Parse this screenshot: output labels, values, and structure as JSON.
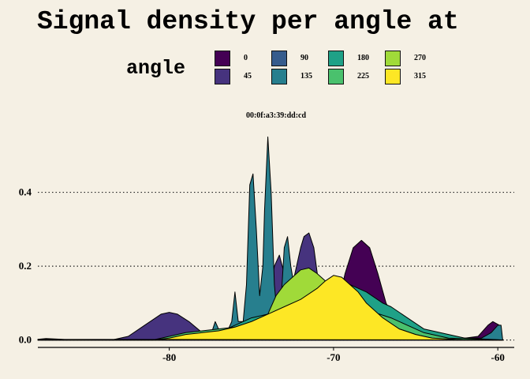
{
  "chart_data": {
    "type": "area",
    "title": "Signal density per angle at",
    "facet_label": "00:0f:a3:39:dd:cd",
    "legend_title": "angle",
    "legend_position": "top",
    "xlim": [
      -88,
      -59
    ],
    "ylim": [
      -0.02,
      0.6
    ],
    "x_ticks": [
      -80,
      -70,
      -60
    ],
    "y_ticks": [
      0.0,
      0.2,
      0.4
    ],
    "x_tick_labels": [
      "-80",
      "-70",
      "-60"
    ],
    "y_tick_labels": [
      "0.0",
      "0.2",
      "0.4"
    ],
    "grid": "horizontal-dotted",
    "series": [
      {
        "name": "0",
        "color": "#440154",
        "points": [
          [
            -88,
            0
          ],
          [
            -71.5,
            0
          ],
          [
            -70.5,
            0.01
          ],
          [
            -69.8,
            0.08
          ],
          [
            -69.3,
            0.18
          ],
          [
            -68.8,
            0.25
          ],
          [
            -68.3,
            0.27
          ],
          [
            -67.8,
            0.25
          ],
          [
            -67.3,
            0.18
          ],
          [
            -66.8,
            0.1
          ],
          [
            -66.2,
            0.05
          ],
          [
            -65.5,
            0.03
          ],
          [
            -64.5,
            0.02
          ],
          [
            -63.5,
            0.01
          ],
          [
            -62,
            0.005
          ],
          [
            -61.2,
            0.01
          ],
          [
            -60.6,
            0.04
          ],
          [
            -60.3,
            0.05
          ],
          [
            -59.9,
            0.04
          ],
          [
            -59.7,
            0
          ]
        ]
      },
      {
        "name": "45",
        "color": "#46337e",
        "points": [
          [
            -88,
            0
          ],
          [
            -83.5,
            0
          ],
          [
            -82.5,
            0.01
          ],
          [
            -81.5,
            0.04
          ],
          [
            -80.5,
            0.07
          ],
          [
            -80,
            0.075
          ],
          [
            -79.5,
            0.07
          ],
          [
            -78.8,
            0.05
          ],
          [
            -78,
            0.02
          ],
          [
            -77,
            0.01
          ],
          [
            -75,
            0.05
          ],
          [
            -74,
            0.1
          ],
          [
            -73.6,
            0.2
          ],
          [
            -73.3,
            0.23
          ],
          [
            -73,
            0.18
          ],
          [
            -72.5,
            0.15
          ],
          [
            -72,
            0.25
          ],
          [
            -71.8,
            0.28
          ],
          [
            -71.5,
            0.29
          ],
          [
            -71.2,
            0.25
          ],
          [
            -70.9,
            0.15
          ],
          [
            -70.5,
            0.06
          ],
          [
            -69,
            0.02
          ],
          [
            -67,
            0.01
          ],
          [
            -65,
            0
          ],
          [
            -59.7,
            0
          ]
        ]
      },
      {
        "name": "90",
        "color": "#365c8d",
        "points": [
          [
            -88,
            0
          ],
          [
            -79,
            0
          ],
          [
            -77.8,
            0.01
          ],
          [
            -77.2,
            0.03
          ],
          [
            -76.8,
            0.02
          ],
          [
            -76,
            0.03
          ],
          [
            -75,
            0.04
          ],
          [
            -74,
            0.03
          ],
          [
            -73,
            0.02
          ],
          [
            -72,
            0.01
          ],
          [
            -70,
            0
          ],
          [
            -59.7,
            0
          ]
        ]
      },
      {
        "name": "135",
        "color": "#277f8e",
        "points": [
          [
            -88,
            0
          ],
          [
            -78,
            0
          ],
          [
            -77.5,
            0.01
          ],
          [
            -77.2,
            0.05
          ],
          [
            -76.9,
            0.02
          ],
          [
            -76.5,
            0.02
          ],
          [
            -76.2,
            0.05
          ],
          [
            -76,
            0.13
          ],
          [
            -75.8,
            0.05
          ],
          [
            -75.5,
            0.05
          ],
          [
            -75.3,
            0.15
          ],
          [
            -75.1,
            0.42
          ],
          [
            -74.9,
            0.45
          ],
          [
            -74.7,
            0.3
          ],
          [
            -74.5,
            0.12
          ],
          [
            -74.3,
            0.2
          ],
          [
            -74.2,
            0.35
          ],
          [
            -74,
            0.55
          ],
          [
            -73.8,
            0.4
          ],
          [
            -73.6,
            0.15
          ],
          [
            -73.4,
            0.05
          ],
          [
            -73.2,
            0.1
          ],
          [
            -73,
            0.25
          ],
          [
            -72.8,
            0.28
          ],
          [
            -72.6,
            0.2
          ],
          [
            -72.3,
            0.12
          ],
          [
            -72,
            0.08
          ],
          [
            -71,
            0.05
          ],
          [
            -69,
            0.03
          ],
          [
            -67,
            0.015
          ],
          [
            -65,
            0.01
          ],
          [
            -62,
            0.005
          ],
          [
            -61,
            0.005
          ],
          [
            -60.4,
            0.02
          ],
          [
            -60,
            0.04
          ],
          [
            -59.8,
            0.04
          ],
          [
            -59.7,
            0
          ]
        ]
      },
      {
        "name": "180",
        "color": "#1fa187",
        "points": [
          [
            -88,
            0
          ],
          [
            -78.5,
            0
          ],
          [
            -77,
            0.02
          ],
          [
            -76,
            0.04
          ],
          [
            -75,
            0.06
          ],
          [
            -74,
            0.07
          ],
          [
            -73,
            0.08
          ],
          [
            -72,
            0.1
          ],
          [
            -71,
            0.13
          ],
          [
            -70,
            0.15
          ],
          [
            -69,
            0.15
          ],
          [
            -68,
            0.13
          ],
          [
            -67,
            0.1
          ],
          [
            -66.5,
            0.09
          ],
          [
            -65.5,
            0.06
          ],
          [
            -64.5,
            0.03
          ],
          [
            -63,
            0.015
          ],
          [
            -62,
            0.005
          ],
          [
            -59.7,
            0
          ]
        ]
      },
      {
        "name": "225",
        "color": "#4ac16d",
        "points": [
          [
            -88,
            0
          ],
          [
            -81,
            0
          ],
          [
            -80,
            0.01
          ],
          [
            -79,
            0.02
          ],
          [
            -78,
            0.025
          ],
          [
            -77,
            0.03
          ],
          [
            -76,
            0.035
          ],
          [
            -75,
            0.05
          ],
          [
            -74,
            0.07
          ],
          [
            -73,
            0.1
          ],
          [
            -72,
            0.12
          ],
          [
            -71,
            0.14
          ],
          [
            -70,
            0.14
          ],
          [
            -69,
            0.12
          ],
          [
            -68,
            0.08
          ],
          [
            -67.2,
            0.07
          ],
          [
            -66.5,
            0.06
          ],
          [
            -65.5,
            0.04
          ],
          [
            -64.5,
            0.02
          ],
          [
            -63,
            0.005
          ],
          [
            -59.7,
            0
          ]
        ]
      },
      {
        "name": "270",
        "color": "#a0da39",
        "points": [
          [
            -88,
            0
          ],
          [
            -77,
            0
          ],
          [
            -76,
            0.01
          ],
          [
            -75,
            0.03
          ],
          [
            -74,
            0.07
          ],
          [
            -73.5,
            0.12
          ],
          [
            -73,
            0.15
          ],
          [
            -72.5,
            0.17
          ],
          [
            -72,
            0.19
          ],
          [
            -71.5,
            0.195
          ],
          [
            -71,
            0.18
          ],
          [
            -70.5,
            0.16
          ],
          [
            -70,
            0.13
          ],
          [
            -69.5,
            0.12
          ],
          [
            -69,
            0.12
          ],
          [
            -68.5,
            0.11
          ],
          [
            -68,
            0.09
          ],
          [
            -67,
            0.05
          ],
          [
            -66,
            0.03
          ],
          [
            -65,
            0.015
          ],
          [
            -64,
            0.005
          ],
          [
            -62,
            0
          ],
          [
            -59.7,
            0
          ]
        ]
      },
      {
        "name": "315",
        "color": "#fde725",
        "points": [
          [
            -88,
            0.002
          ],
          [
            -87.5,
            0.004
          ],
          [
            -86,
            0.001
          ],
          [
            -81,
            0
          ],
          [
            -80,
            0.005
          ],
          [
            -79,
            0.015
          ],
          [
            -78,
            0.02
          ],
          [
            -77,
            0.025
          ],
          [
            -76,
            0.035
          ],
          [
            -75,
            0.05
          ],
          [
            -74,
            0.07
          ],
          [
            -73,
            0.09
          ],
          [
            -72,
            0.11
          ],
          [
            -71,
            0.14
          ],
          [
            -70.5,
            0.16
          ],
          [
            -70,
            0.175
          ],
          [
            -69.5,
            0.17
          ],
          [
            -69,
            0.15
          ],
          [
            -68.5,
            0.13
          ],
          [
            -68,
            0.1
          ],
          [
            -67,
            0.06
          ],
          [
            -66,
            0.03
          ],
          [
            -65,
            0.015
          ],
          [
            -64,
            0.005
          ],
          [
            -62,
            0
          ],
          [
            -59.7,
            0
          ]
        ]
      }
    ]
  }
}
